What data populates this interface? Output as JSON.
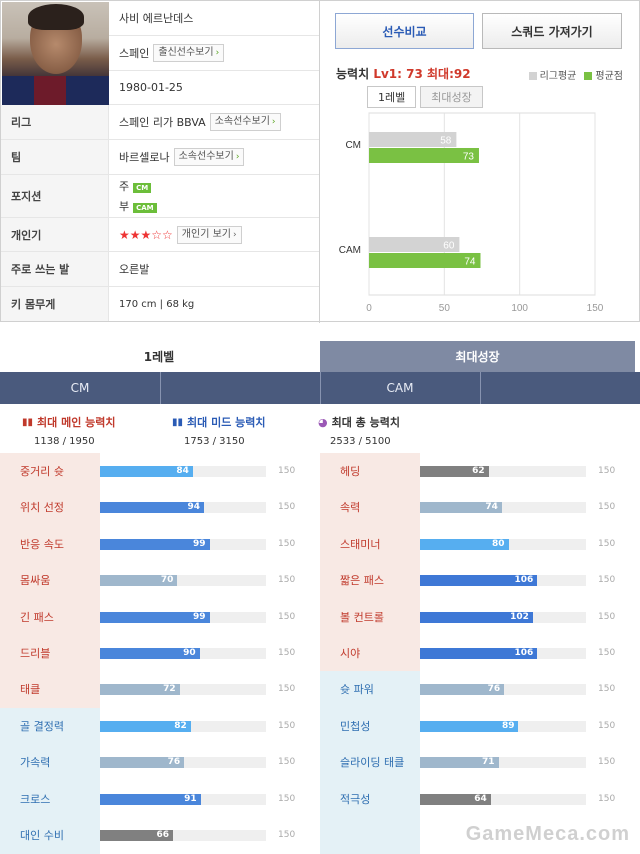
{
  "profile": {
    "name": "사비 에르난데스",
    "nation": "스페인",
    "nation_link": "출신선수보기",
    "birth": "1980-01-25"
  },
  "info_rows": [
    {
      "label": "리그",
      "value": "스페인 리가 BBVA",
      "link": "소속선수보기"
    },
    {
      "label": "팀",
      "value": "바르셀로나",
      "link": "소속선수보기"
    },
    {
      "label": "포지션",
      "primary_label": "주",
      "primary": "CM",
      "secondary_label": "부",
      "secondary": "CAM"
    },
    {
      "label": "개인기",
      "stars": "★★★☆☆",
      "link": "개인기 보기"
    },
    {
      "label": "주로 쓰는 발",
      "value": "오른발"
    },
    {
      "label": "키 몸무게",
      "value": "170 cm | 68 kg"
    }
  ],
  "buttons": {
    "compare": "선수비교",
    "squad": "스쿼드 가져가기"
  },
  "ability": {
    "label": "능력치",
    "lv": "Lv1: 73",
    "max": "최대:92"
  },
  "legend": {
    "league_avg": "리그평균",
    "avg_point": "평균점",
    "league_color": "#d3d3d3",
    "avg_color": "#7ac143"
  },
  "chart_tabs": {
    "level1": "1레벨",
    "max_growth": "최대성장"
  },
  "chart_data": {
    "type": "bar",
    "orientation": "horizontal",
    "categories": [
      "CM",
      "CAM"
    ],
    "series": [
      {
        "name": "리그평균",
        "values": [
          58,
          60
        ]
      },
      {
        "name": "평균점",
        "values": [
          73,
          74
        ]
      }
    ],
    "xlim": [
      0,
      150
    ],
    "xticks": [
      "0",
      "50",
      "100",
      "150"
    ],
    "grid": true
  },
  "level_tabs": {
    "level1": "1레벨",
    "max_growth": "최대성장"
  },
  "positions": {
    "left": "CM",
    "right": "CAM"
  },
  "summary": {
    "main": {
      "label": "최대 메인 능력치",
      "value": "1138 / 1950"
    },
    "mid": {
      "label": "최대 미드 능력치",
      "value": "1753 / 3150"
    },
    "total": {
      "label": "최대 총 능력치",
      "value": "2533 / 5100"
    }
  },
  "stat_max": "150",
  "stats_left": [
    {
      "name": "중거리 슛",
      "value": 84
    },
    {
      "name": "위치 선정",
      "value": 94
    },
    {
      "name": "반응 속도",
      "value": 99
    },
    {
      "name": "몸싸움",
      "value": 70
    },
    {
      "name": "긴 패스",
      "value": 99
    },
    {
      "name": "드리블",
      "value": 90
    },
    {
      "name": "태클",
      "value": 72
    },
    {
      "name": "골 결정력",
      "value": 82
    },
    {
      "name": "가속력",
      "value": 76
    },
    {
      "name": "크로스",
      "value": 91
    },
    {
      "name": "대인 수비",
      "value": 66
    }
  ],
  "stats_right": [
    {
      "name": "헤딩",
      "value": 62
    },
    {
      "name": "속력",
      "value": 74
    },
    {
      "name": "스태미너",
      "value": 80
    },
    {
      "name": "짧은 패스",
      "value": 106
    },
    {
      "name": "볼 컨트롤",
      "value": 102
    },
    {
      "name": "시야",
      "value": 106
    },
    {
      "name": "슛 파워",
      "value": 76
    },
    {
      "name": "민첩성",
      "value": 89
    },
    {
      "name": "슬라이딩 태클",
      "value": 71
    },
    {
      "name": "적극성",
      "value": 64
    }
  ],
  "watermark": "GameMeca.com"
}
